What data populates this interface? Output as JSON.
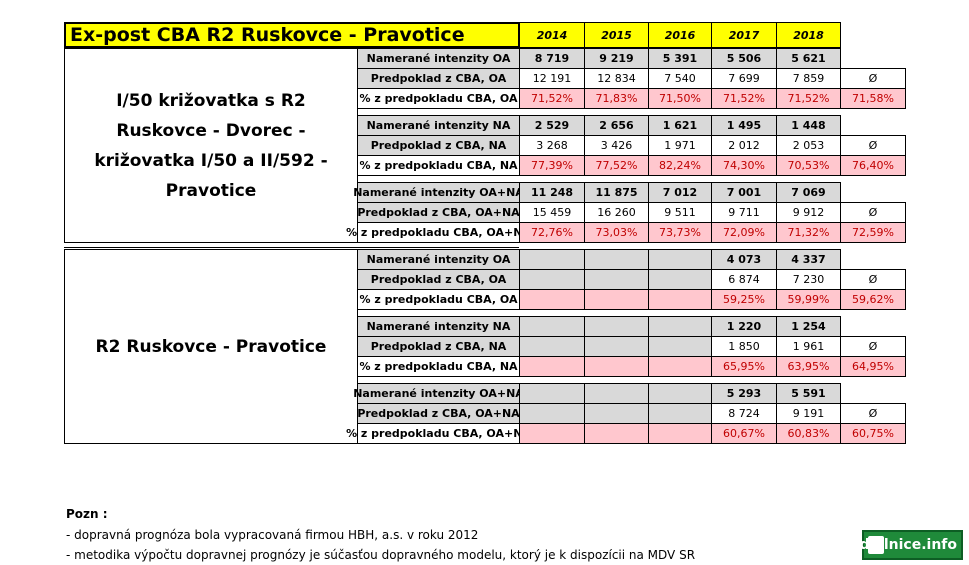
{
  "title": "Ex-post CBA R2 Ruskovce - Pravotice",
  "years": [
    "2014",
    "2015",
    "2016",
    "2017",
    "2018"
  ],
  "sections": [
    {
      "name": "I/50 križovatka s R2 Ruskovce - Dvorec - križovatka I/50 a II/592 - Pravotice",
      "groups": [
        {
          "rows": [
            {
              "label": "Namerané intenzity OA",
              "values": [
                "8 719",
                "9 219",
                "5 391",
                "5 506",
                "5 621"
              ]
            },
            {
              "label": "Predpoklad z CBA, OA",
              "values": [
                "12 191",
                "12 834",
                "7 540",
                "7 699",
                "7 859"
              ],
              "avg": "Ø"
            },
            {
              "label": "% z predpokladu CBA, OA",
              "values": [
                "71,52%",
                "71,83%",
                "71,50%",
                "71,52%",
                "71,52%"
              ],
              "avg": "71,58%"
            }
          ]
        },
        {
          "rows": [
            {
              "label": "Namerané intenzity NA",
              "values": [
                "2 529",
                "2 656",
                "1 621",
                "1 495",
                "1 448"
              ]
            },
            {
              "label": "Predpoklad z CBA, NA",
              "values": [
                "3 268",
                "3 426",
                "1 971",
                "2 012",
                "2 053"
              ],
              "avg": "Ø"
            },
            {
              "label": "% z predpokladu CBA, NA",
              "values": [
                "77,39%",
                "77,52%",
                "82,24%",
                "74,30%",
                "70,53%"
              ],
              "avg": "76,40%"
            }
          ]
        },
        {
          "rows": [
            {
              "label": "Namerané intenzity OA+NA",
              "values": [
                "11 248",
                "11 875",
                "7 012",
                "7 001",
                "7 069"
              ]
            },
            {
              "label": "Predpoklad z CBA, OA+NA",
              "values": [
                "15 459",
                "16 260",
                "9 511",
                "9 711",
                "9 912"
              ],
              "avg": "Ø"
            },
            {
              "label": "% z predpokladu CBA, OA+NA",
              "values": [
                "72,76%",
                "73,03%",
                "73,73%",
                "72,09%",
                "71,32%"
              ],
              "avg": "72,59%"
            }
          ]
        }
      ]
    },
    {
      "name": "R2 Ruskovce - Pravotice",
      "groups": [
        {
          "rows": [
            {
              "label": "Namerané intenzity OA",
              "values": [
                null,
                null,
                null,
                "4 073",
                "4 337"
              ]
            },
            {
              "label": "Predpoklad z CBA, OA",
              "values": [
                null,
                null,
                null,
                "6 874",
                "7 230"
              ],
              "avg": "Ø"
            },
            {
              "label": "% z predpokladu CBA, OA",
              "values": [
                null,
                null,
                null,
                "59,25%",
                "59,99%"
              ],
              "avg": "59,62%"
            }
          ]
        },
        {
          "rows": [
            {
              "label": "Namerané intenzity NA",
              "values": [
                null,
                null,
                null,
                "1 220",
                "1 254"
              ]
            },
            {
              "label": "Predpoklad z CBA, NA",
              "values": [
                null,
                null,
                null,
                "1 850",
                "1 961"
              ],
              "avg": "Ø"
            },
            {
              "label": "% z predpokladu CBA, NA",
              "values": [
                null,
                null,
                null,
                "65,95%",
                "63,95%"
              ],
              "avg": "64,95%"
            }
          ]
        },
        {
          "rows": [
            {
              "label": "Namerané intenzity OA+NA",
              "values": [
                null,
                null,
                null,
                "5 293",
                "5 591"
              ]
            },
            {
              "label": "Predpoklad z CBA, OA+NA",
              "values": [
                null,
                null,
                null,
                "8 724",
                "9 191"
              ],
              "avg": "Ø"
            },
            {
              "label": "% z predpokladu CBA, OA+NA",
              "values": [
                null,
                null,
                null,
                "60,67%",
                "60,83%"
              ],
              "avg": "60,75%"
            }
          ]
        }
      ]
    }
  ],
  "notes": {
    "title": "Pozn :",
    "items": [
      "- dopravná prognóza bola vypracovaná firmou HBH, a.s. v roku 2012",
      "- metodika výpočtu dopravnej prognózy je súčasťou dopravného modelu, ktorý je k dispozícii na MDV SR"
    ]
  },
  "logo": "dialnice.info"
}
